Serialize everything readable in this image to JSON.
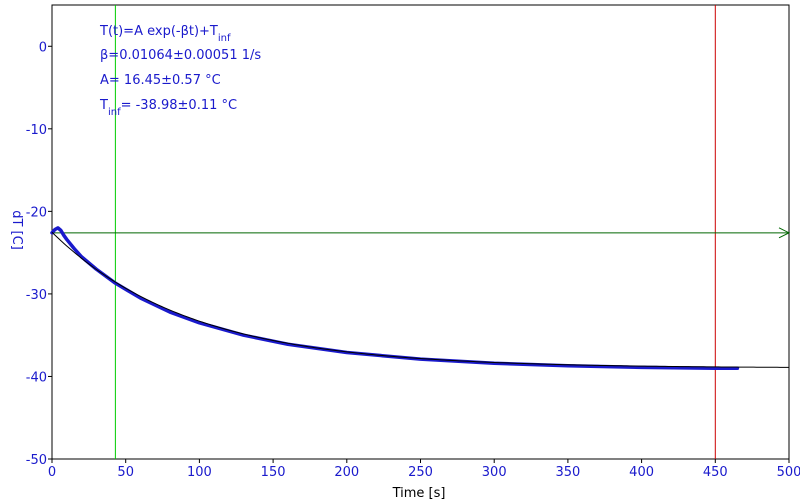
{
  "chart_data": {
    "type": "scatter",
    "xlabel": "Time [s]",
    "ylabel": "dT [C]",
    "xlim": [
      0,
      500
    ],
    "ylim": [
      -50,
      5
    ],
    "x_ticks": [
      0,
      50,
      100,
      150,
      200,
      250,
      300,
      350,
      400,
      450,
      500
    ],
    "y_ticks": [
      0,
      -10,
      -20,
      -30,
      -40,
      -50
    ],
    "annotations": [
      "T(t)=A exp(-βt)+T",
      "inf",
      "β=0.01064±0.00051 1/s",
      "A= 16.45±0.57 °C",
      "T",
      "inf",
      "= -38.98±0.11 °C"
    ],
    "fit": {
      "A": 16.45,
      "beta": 0.01064,
      "T_inf": -38.98
    },
    "data_series": {
      "x": [
        0,
        2,
        4,
        6,
        8,
        10,
        15,
        20,
        30,
        43,
        60,
        80,
        100,
        130,
        160,
        200,
        250,
        300,
        350,
        400,
        450,
        465
      ],
      "y": [
        -22.6,
        -22.2,
        -22.0,
        -22.3,
        -22.9,
        -23.4,
        -24.5,
        -25.5,
        -27.0,
        -28.7,
        -30.5,
        -32.2,
        -33.5,
        -35.0,
        -36.1,
        -37.1,
        -37.9,
        -38.4,
        -38.7,
        -38.9,
        -39.0,
        -39.0
      ]
    },
    "colors": {
      "axes": "#000000",
      "tick_labels": "#1a1acc",
      "data": "#1a1acc",
      "fit": "#000000",
      "left_cursor": "#00cc00",
      "right_cursor": "#cc0000",
      "h_cursor": "#006600"
    },
    "cursors": {
      "left_x": 43,
      "right_x": 450,
      "h_y": -22.6
    }
  }
}
